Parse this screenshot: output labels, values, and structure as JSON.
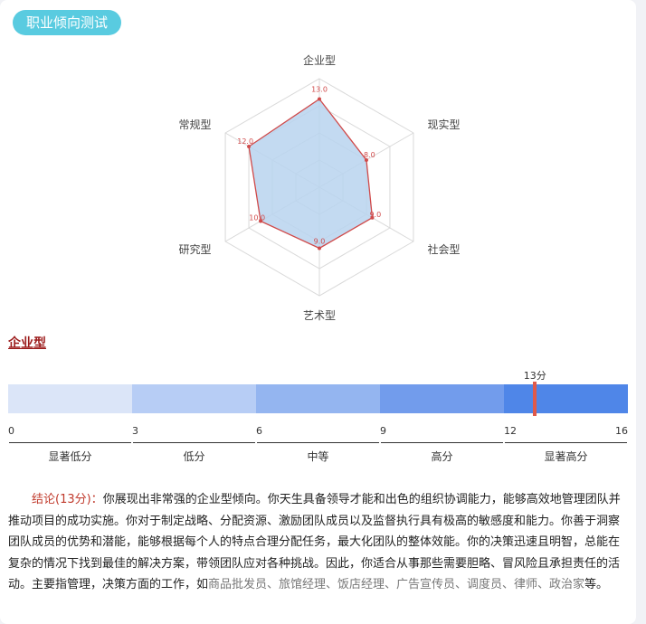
{
  "section": {
    "title": "职业倾向测试"
  },
  "chart_data": {
    "type": "radar",
    "axes": [
      "企业型",
      "现实型",
      "社会型",
      "艺术型",
      "研究型",
      "常规型"
    ],
    "values": [
      13,
      8,
      9,
      9,
      10,
      12
    ],
    "value_labels": [
      "13.0",
      "8.0",
      "9.0",
      "9.0",
      "10.0",
      "12.0"
    ],
    "max": 16,
    "colors": {
      "fill": "#b8d4ee",
      "stroke": "#d04a4a",
      "grid": "#d9d9d9",
      "label": "#d04a4a"
    }
  },
  "result": {
    "type_name": "企业型",
    "score": 13,
    "score_label": "13分",
    "scale_ticks": [
      "0",
      "3",
      "6",
      "9",
      "12",
      "16"
    ],
    "scale_values": [
      0,
      3,
      6,
      9,
      12,
      16
    ],
    "bands": [
      "显著低分",
      "低分",
      "中等",
      "高分",
      "显著高分"
    ],
    "band_colors": [
      "#dbe5f8",
      "#b7cdf5",
      "#94b5f0",
      "#729cec",
      "#4f86e8"
    ]
  },
  "conclusion": {
    "head": "结论(13分)：",
    "body": "你展现出非常强的企业型倾向。你天生具备领导才能和出色的组织协调能力，能够高效地管理团队并推动项目的成功实施。你对于制定战略、分配资源、激励团队成员以及监督执行具有极高的敏感度和能力。你善于洞察团队成员的优势和潜能，能够根据每个人的特点合理分配任务，最大化团队的整体效能。你的决策迅速且明智，总能在复杂的情况下找到最佳的解决方案，带领团队应对各种挑战。因此，你适合从事那些需要胆略、冒风险且承担责任的活动。主要指管理，决策方面的工作，如",
    "jobs": "商品批发员、旅馆经理、饭店经理、广告宣传员、调度员、律师、政治家",
    "tail": "等。"
  }
}
